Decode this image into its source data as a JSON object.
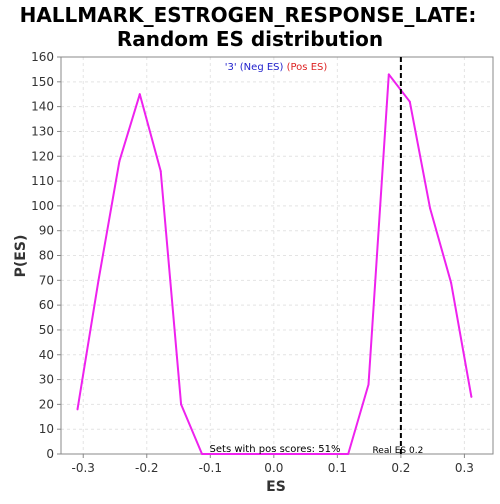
{
  "chart_data": {
    "type": "line",
    "title_line1": "HALLMARK_ESTROGEN_RESPONSE_LATE:",
    "title_line2": "Random ES distribution",
    "xlabel": "ES",
    "ylabel": "P(ES)",
    "xlim": [
      -0.335,
      0.345
    ],
    "ylim": [
      0,
      160
    ],
    "xticks": [
      -0.3,
      -0.2,
      -0.1,
      0.0,
      0.1,
      0.2,
      0.3
    ],
    "xtick_labels": [
      "-0.3",
      "-0.2",
      "-0.1",
      "0.0",
      "0.1",
      "0.2",
      "0.3"
    ],
    "yticks": [
      0,
      10,
      20,
      30,
      40,
      50,
      60,
      70,
      80,
      90,
      100,
      110,
      120,
      130,
      140,
      150,
      160
    ],
    "ytick_labels": [
      "0",
      "10",
      "20",
      "30",
      "40",
      "50",
      "60",
      "70",
      "80",
      "90",
      "100",
      "110",
      "120",
      "130",
      "140",
      "150",
      "160"
    ],
    "grid": true,
    "legend": {
      "position": "top-center",
      "prefix": "'3' ",
      "neg_label": "(Neg ES)",
      "pos_label": "(Pos ES)",
      "prefix_color": "#2222cc",
      "neg_color": "#2222cc",
      "pos_color": "#dd2222"
    },
    "series": [
      {
        "color": "#ee22ee",
        "x": [
          -0.309,
          -0.276,
          -0.243,
          -0.211,
          -0.178,
          -0.146,
          -0.113,
          0.117,
          0.149,
          0.181,
          0.214,
          0.246,
          0.279,
          0.311
        ],
        "y": [
          18,
          70,
          118,
          145,
          114,
          20,
          0,
          0,
          28,
          153,
          142,
          99,
          69,
          23
        ]
      }
    ],
    "real_es": {
      "value": 0.2,
      "label": "Real ES 0.2",
      "color": "#000000"
    },
    "annotation": "Sets with pos scores: 51%"
  }
}
